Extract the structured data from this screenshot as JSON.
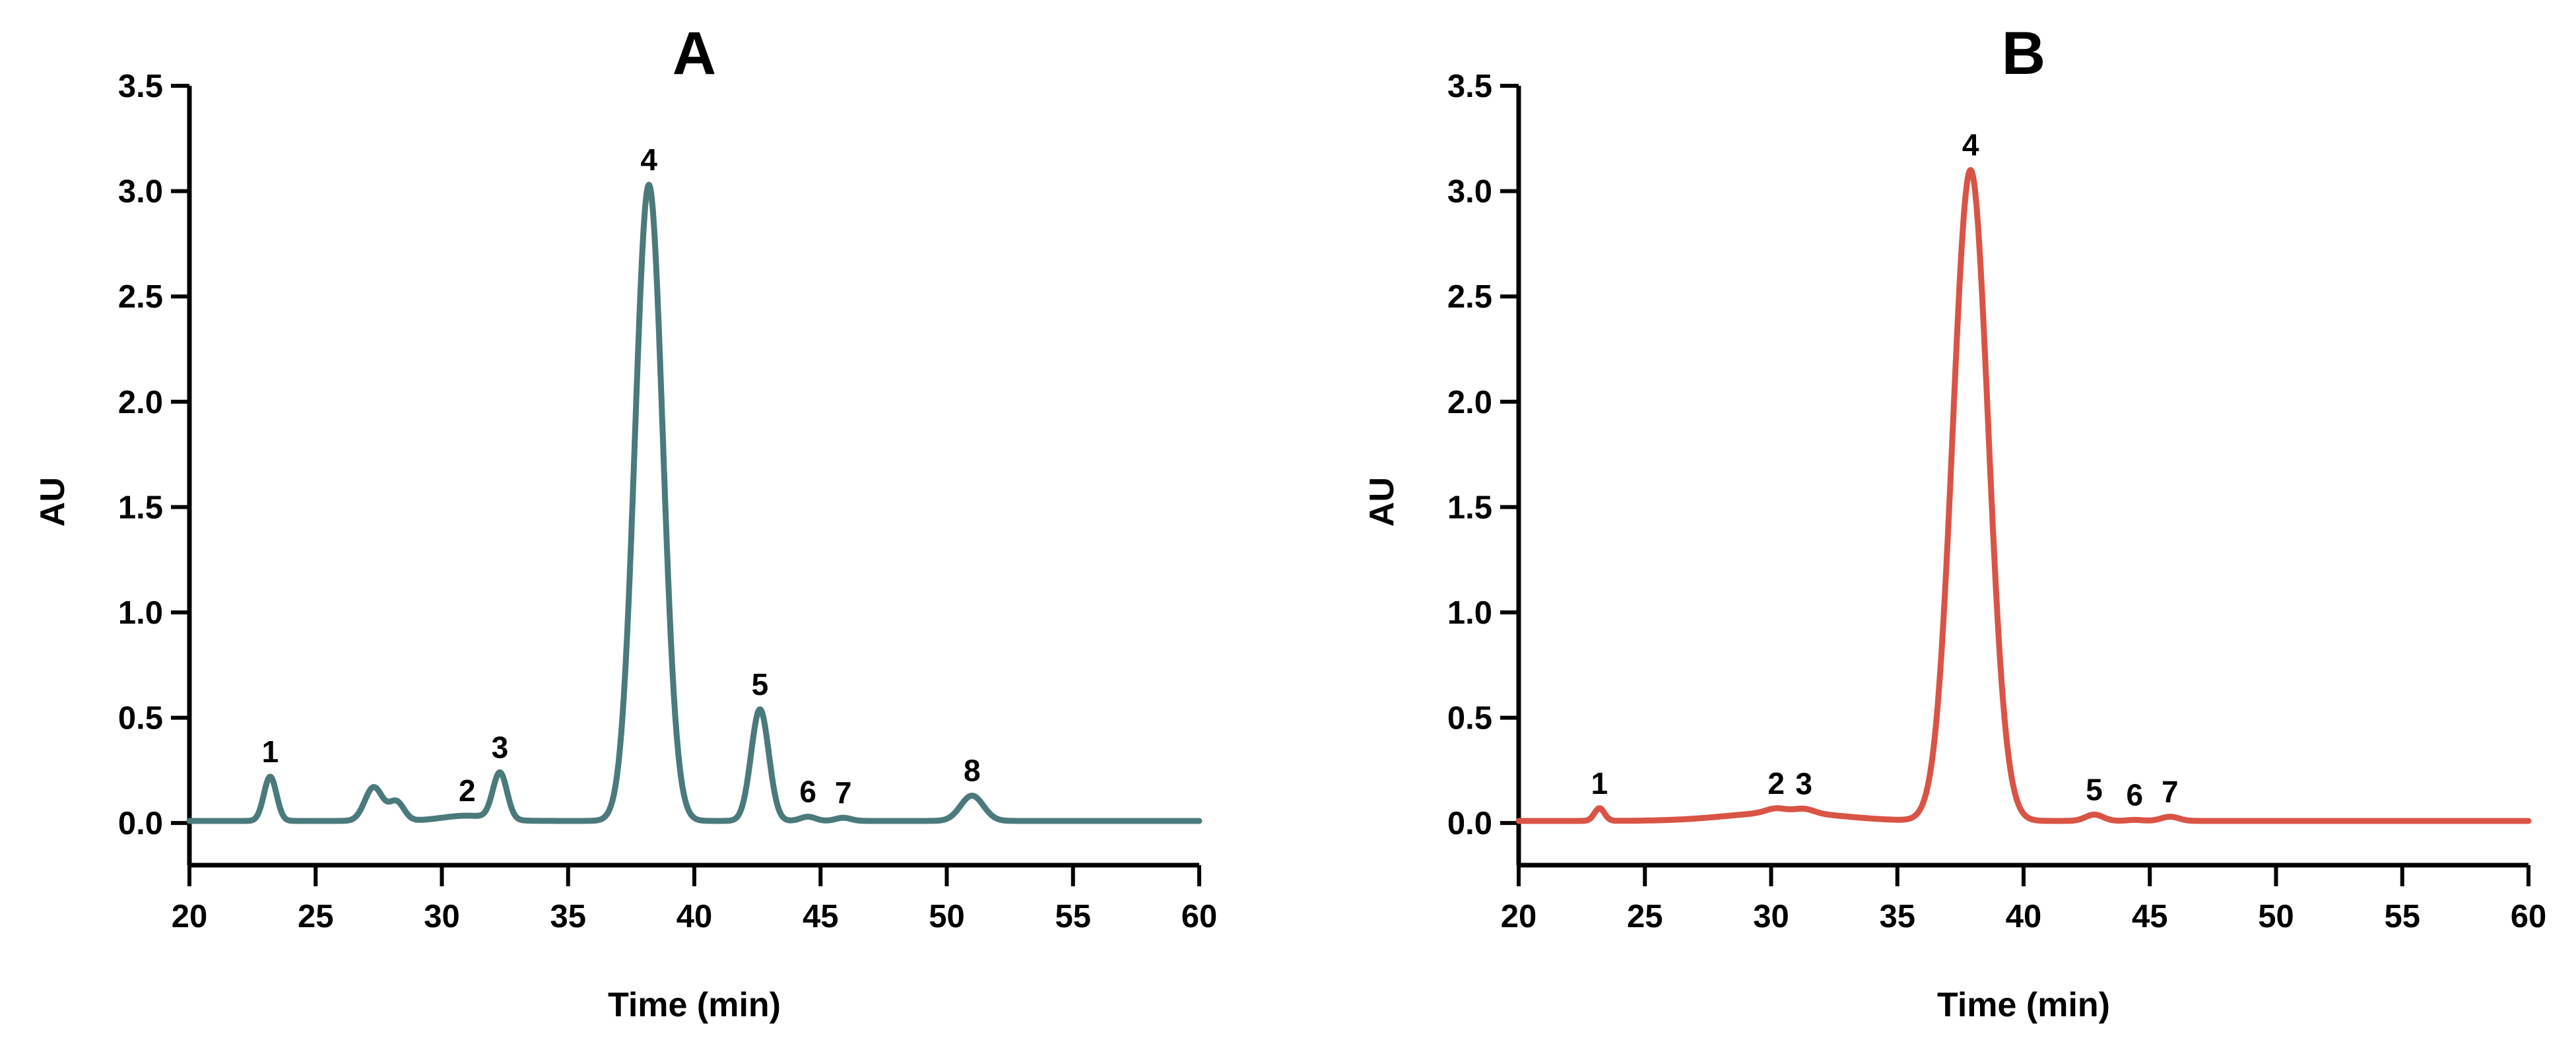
{
  "chart_data": [
    {
      "type": "line",
      "title": "A",
      "xlabel": "Time (min)",
      "ylabel": "AU",
      "xlim": [
        20,
        60
      ],
      "ylim": [
        -0.2,
        3.5
      ],
      "xticks": [
        "20",
        "25",
        "30",
        "35",
        "40",
        "45",
        "50",
        "55",
        "60"
      ],
      "yticks": [
        "0.0",
        "0.5",
        "1.0",
        "1.5",
        "2.0",
        "2.5",
        "3.0",
        "3.5"
      ],
      "color": "#4a7a7c",
      "baseline": 0.01,
      "peaks": [
        {
          "label": "1",
          "time": 23.2,
          "height": 0.21,
          "width": 0.25
        },
        {
          "label": "",
          "time": 27.3,
          "height": 0.16,
          "width": 0.35
        },
        {
          "label": "",
          "time": 28.2,
          "height": 0.09,
          "width": 0.3
        },
        {
          "label": "2",
          "time": 31.0,
          "height": 0.025,
          "width": 1.0
        },
        {
          "label": "3",
          "time": 32.3,
          "height": 0.22,
          "width": 0.28
        },
        {
          "label": "4",
          "time": 38.2,
          "height": 3.02,
          "width": 0.55
        },
        {
          "label": "5",
          "time": 42.6,
          "height": 0.53,
          "width": 0.35
        },
        {
          "label": "6",
          "time": 44.5,
          "height": 0.02,
          "width": 0.3
        },
        {
          "label": "7",
          "time": 45.9,
          "height": 0.015,
          "width": 0.3
        },
        {
          "label": "8",
          "time": 51.0,
          "height": 0.12,
          "width": 0.45
        }
      ]
    },
    {
      "type": "line",
      "title": "B",
      "xlabel": "Time (min)",
      "ylabel": "AU",
      "xlim": [
        20,
        60
      ],
      "ylim": [
        -0.2,
        3.5
      ],
      "xticks": [
        "20",
        "25",
        "30",
        "35",
        "40",
        "45",
        "50",
        "55",
        "60"
      ],
      "yticks": [
        "0.0",
        "0.5",
        "1.0",
        "1.5",
        "2.0",
        "2.5",
        "3.0",
        "3.5"
      ],
      "color": "#d95445",
      "baseline": 0.01,
      "peaks": [
        {
          "label": "1",
          "time": 23.2,
          "height": 0.06,
          "width": 0.2
        },
        {
          "label": "",
          "time": 30.5,
          "height": 0.04,
          "width": 2.2
        },
        {
          "label": "2",
          "time": 30.2,
          "height": 0.02,
          "width": 0.4
        },
        {
          "label": "3",
          "time": 31.3,
          "height": 0.02,
          "width": 0.4
        },
        {
          "label": "4",
          "time": 37.9,
          "height": 3.09,
          "width": 0.7
        },
        {
          "label": "5",
          "time": 42.8,
          "height": 0.03,
          "width": 0.35
        },
        {
          "label": "6",
          "time": 44.4,
          "height": 0.005,
          "width": 0.3
        },
        {
          "label": "7",
          "time": 45.8,
          "height": 0.02,
          "width": 0.35
        }
      ]
    }
  ]
}
